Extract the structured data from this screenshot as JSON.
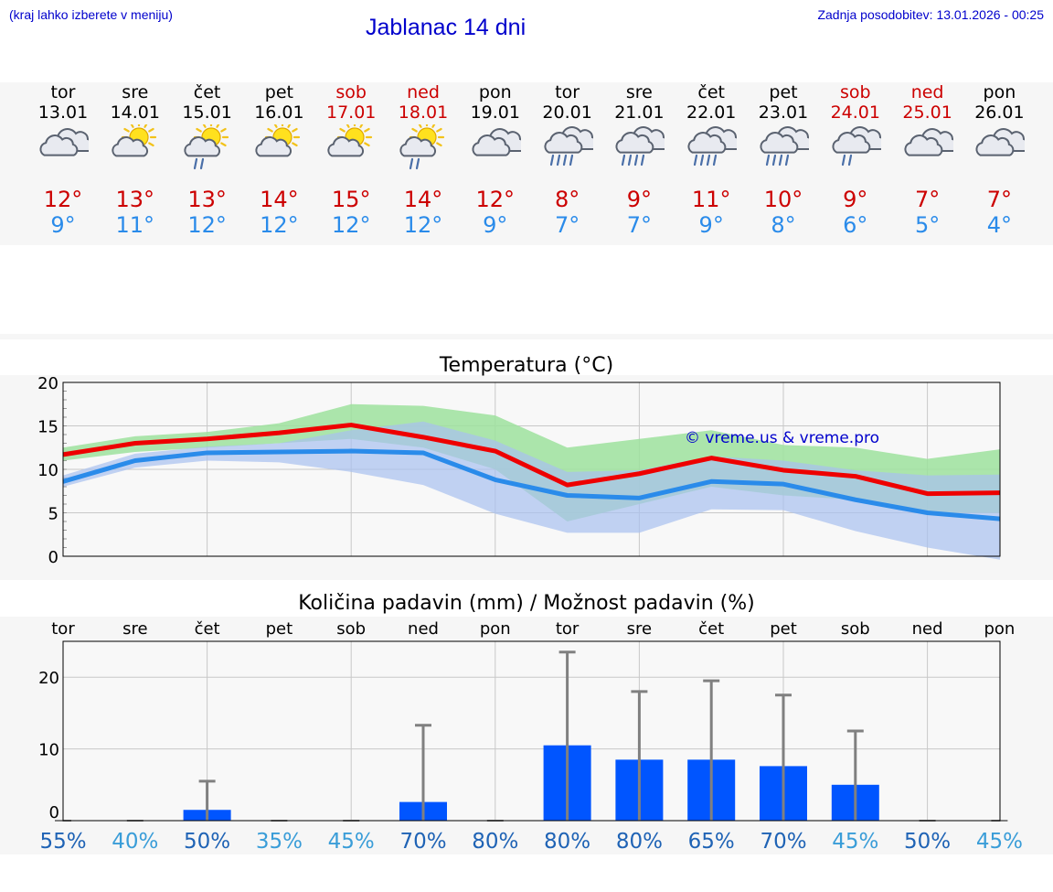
{
  "header": {
    "hint": "(kraj lahko izberete v meniju)",
    "title": "Jablanac 14 dni",
    "updated": "Zadnja posodobitev: 13.01.2026 - 00:25"
  },
  "colors": {
    "max": "#ee0000",
    "min": "#2a8bea",
    "bar": "#0055ff",
    "whisker": "#808080",
    "band_max": "#9ee29e",
    "band_min": "#a8c0ef",
    "prob_dark": "#1f63b5",
    "prob_light": "#3a9dd8"
  },
  "days": [
    {
      "name": "tor",
      "date": "13.01",
      "icon": "cloudy",
      "max": "12°",
      "min": "9°",
      "weekend": false
    },
    {
      "name": "sre",
      "date": "14.01",
      "icon": "partly-sunny",
      "max": "13°",
      "min": "11°",
      "weekend": false
    },
    {
      "name": "čet",
      "date": "15.01",
      "icon": "sun-shower",
      "max": "13°",
      "min": "12°",
      "weekend": false
    },
    {
      "name": "pet",
      "date": "16.01",
      "icon": "partly-sunny",
      "max": "14°",
      "min": "12°",
      "weekend": false
    },
    {
      "name": "sob",
      "date": "17.01",
      "icon": "partly-sunny",
      "max": "15°",
      "min": "12°",
      "weekend": true
    },
    {
      "name": "ned",
      "date": "18.01",
      "icon": "sun-shower",
      "max": "14°",
      "min": "12°",
      "weekend": true
    },
    {
      "name": "pon",
      "date": "19.01",
      "icon": "cloudy",
      "max": "12°",
      "min": "9°",
      "weekend": false
    },
    {
      "name": "tor",
      "date": "20.01",
      "icon": "rain",
      "max": "8°",
      "min": "7°",
      "weekend": false
    },
    {
      "name": "sre",
      "date": "21.01",
      "icon": "rain",
      "max": "9°",
      "min": "7°",
      "weekend": false
    },
    {
      "name": "čet",
      "date": "22.01",
      "icon": "rain",
      "max": "11°",
      "min": "9°",
      "weekend": false
    },
    {
      "name": "pet",
      "date": "23.01",
      "icon": "rain",
      "max": "10°",
      "min": "8°",
      "weekend": false
    },
    {
      "name": "sob",
      "date": "24.01",
      "icon": "light-rain",
      "max": "9°",
      "min": "6°",
      "weekend": true
    },
    {
      "name": "ned",
      "date": "25.01",
      "icon": "cloudy",
      "max": "7°",
      "min": "5°",
      "weekend": true
    },
    {
      "name": "pon",
      "date": "26.01",
      "icon": "cloudy",
      "max": "7°",
      "min": "4°",
      "weekend": false
    }
  ],
  "chart_data": [
    {
      "type": "line",
      "title": "Temperatura (°C)",
      "watermark": "© vreme.us & vreme.pro",
      "ylim": [
        0,
        20
      ],
      "yticks": [
        "0",
        "5",
        "10",
        "15",
        "20"
      ],
      "series": [
        {
          "name": "max",
          "values": [
            11.7,
            13.0,
            13.5,
            14.2,
            15.1,
            13.7,
            12.1,
            8.2,
            9.5,
            11.3,
            9.9,
            9.2,
            7.2,
            7.3
          ]
        },
        {
          "name": "min",
          "values": [
            8.6,
            11.0,
            11.9,
            12.0,
            12.1,
            11.9,
            8.8,
            7.0,
            6.7,
            8.6,
            8.3,
            6.5,
            5.0,
            4.3
          ]
        },
        {
          "name": "max_range_low",
          "values": [
            11.0,
            12.0,
            12.5,
            13.0,
            13.5,
            12.5,
            10.0,
            4.0,
            6.0,
            8.0,
            7.0,
            6.5,
            5.0,
            5.0
          ]
        },
        {
          "name": "max_range_high",
          "values": [
            12.5,
            13.8,
            14.3,
            15.3,
            17.5,
            17.3,
            16.2,
            12.5,
            13.5,
            14.5,
            12.8,
            12.5,
            11.2,
            12.3
          ]
        },
        {
          "name": "min_range_low",
          "values": [
            8.0,
            10.2,
            11.0,
            10.8,
            9.7,
            8.2,
            4.9,
            2.7,
            2.7,
            5.4,
            5.3,
            2.9,
            1.0,
            -0.4
          ]
        },
        {
          "name": "min_range_high",
          "values": [
            9.3,
            11.8,
            12.6,
            13.0,
            14.5,
            15.5,
            13.3,
            9.7,
            9.9,
            11.5,
            11.0,
            9.9,
            9.3,
            9.4
          ]
        }
      ]
    },
    {
      "type": "bar",
      "title": "Količina padavin (mm) / Možnost padavin (%)",
      "categories": [
        "tor",
        "sre",
        "čet",
        "pet",
        "sob",
        "ned",
        "pon",
        "tor",
        "sre",
        "čet",
        "pet",
        "sob",
        "ned",
        "pon"
      ],
      "ylim": [
        0,
        25
      ],
      "yticks": [
        "0",
        "10",
        "20"
      ],
      "values": [
        0,
        0,
        1.5,
        0,
        0,
        2.6,
        0,
        10.5,
        8.5,
        8.5,
        7.6,
        5.0,
        0,
        0
      ],
      "whisker_high": [
        0,
        0,
        5.5,
        0,
        0,
        13.3,
        0,
        23.5,
        18.0,
        19.5,
        17.5,
        12.5,
        0,
        0
      ],
      "probability": [
        "55%",
        "40%",
        "50%",
        "35%",
        "45%",
        "70%",
        "80%",
        "80%",
        "80%",
        "65%",
        "70%",
        "45%",
        "50%",
        "45%"
      ]
    }
  ]
}
